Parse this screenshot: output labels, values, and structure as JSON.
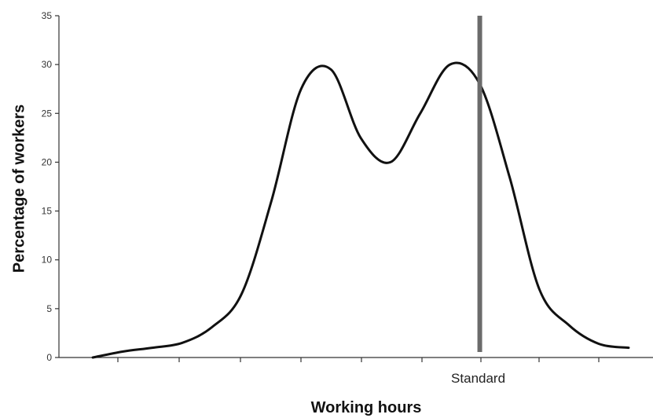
{
  "chart_data": {
    "type": "line",
    "xlabel": "Working hours",
    "ylabel": "Percentage of workers",
    "ylim": [
      0,
      35
    ],
    "yticks": [
      0,
      5,
      10,
      15,
      20,
      25,
      30,
      35
    ],
    "x_categorical_labels": [
      {
        "x": 13,
        "label": "Standard"
      }
    ],
    "x": [
      0,
      1,
      2,
      3,
      4,
      5,
      6,
      7,
      8,
      9,
      10,
      11,
      12,
      13,
      14,
      15,
      16,
      17,
      18
    ],
    "series": [
      {
        "values": [
          0,
          0.6,
          1.0,
          1.5,
          3.1,
          6.5,
          16,
          27.5,
          29.5,
          22.5,
          20,
          25,
          30,
          28,
          18.5,
          7,
          3.3,
          1.4,
          1.0
        ]
      }
    ],
    "reference_line": {
      "x": 13,
      "label": "Standard",
      "color": "#6b6b6b"
    },
    "grid": false,
    "colors": {
      "line": "#111111",
      "reference": "#6b6b6b",
      "axis": "#333333"
    }
  }
}
